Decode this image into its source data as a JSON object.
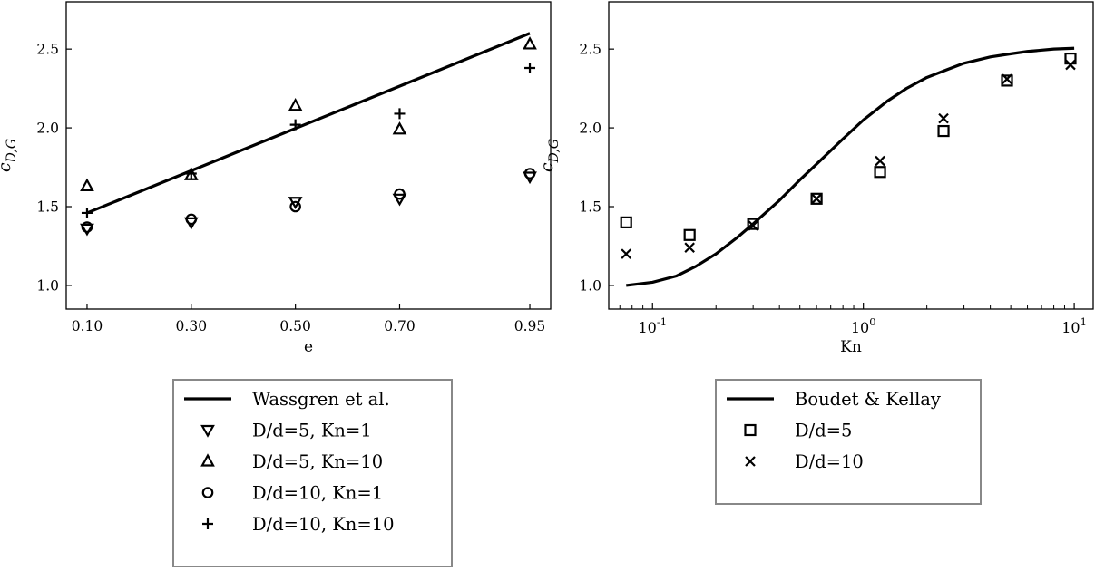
{
  "chart_data": [
    {
      "type": "scatter",
      "xscale": "categorical",
      "xlabel": "e",
      "ylabel": "c_{D,G}",
      "categories": [
        "0.10",
        "0.30",
        "0.50",
        "0.70",
        "0.95"
      ],
      "xlim": [
        0.06,
        0.99
      ],
      "ylim": [
        0.85,
        2.8
      ],
      "yticks": [
        1.0,
        1.5,
        2.0,
        2.5
      ],
      "ytick_labels": [
        "1.0",
        "1.5",
        "2.0",
        "2.5"
      ],
      "grid": false,
      "legend_position": "below",
      "series": [
        {
          "name": "Wassgren et al.",
          "marker": "line",
          "x": [
            0.1,
            0.95
          ],
          "values": [
            1.46,
            2.6
          ]
        },
        {
          "name": "D/d=5, Kn=1",
          "marker": "triangle-down",
          "x": [
            0.1,
            0.3,
            0.5,
            0.7,
            0.95
          ],
          "values": [
            1.36,
            1.4,
            1.53,
            1.55,
            1.69
          ]
        },
        {
          "name": "D/d=5, Kn=10",
          "marker": "triangle-up",
          "x": [
            0.1,
            0.3,
            0.5,
            0.7,
            0.95
          ],
          "values": [
            1.63,
            1.7,
            2.14,
            1.99,
            2.53
          ]
        },
        {
          "name": "D/d=10, Kn=1",
          "marker": "circle",
          "x": [
            0.1,
            0.3,
            0.5,
            0.7,
            0.95
          ],
          "values": [
            1.37,
            1.42,
            1.5,
            1.58,
            1.71
          ]
        },
        {
          "name": "D/d=10, Kn=10",
          "marker": "plus",
          "x": [
            0.1,
            0.3,
            0.5,
            0.7,
            0.95
          ],
          "values": [
            1.46,
            1.71,
            2.02,
            2.09,
            2.38
          ]
        }
      ]
    },
    {
      "type": "scatter",
      "xscale": "log",
      "xlabel": "Kn",
      "ylabel": "c_{D,G}",
      "xlim": [
        0.062,
        12.3
      ],
      "ylim": [
        0.85,
        2.8
      ],
      "xtick_labels": [
        "10^{-1}",
        "10^{0}",
        "10^{1}"
      ],
      "yticks": [
        1.0,
        1.5,
        2.0,
        2.5
      ],
      "ytick_labels": [
        "1.0",
        "1.5",
        "2.0",
        "2.5"
      ],
      "grid": false,
      "legend_position": "below",
      "series": [
        {
          "name": "Boudet & Kellay",
          "marker": "line",
          "x": [
            0.075,
            0.1,
            0.13,
            0.16,
            0.2,
            0.25,
            0.3,
            0.4,
            0.5,
            0.6,
            0.8,
            1.0,
            1.3,
            1.6,
            2.0,
            2.5,
            3.0,
            4.0,
            5.0,
            6.0,
            8.0,
            10.0
          ],
          "values": [
            1.0,
            1.02,
            1.06,
            1.12,
            1.2,
            1.3,
            1.39,
            1.54,
            1.67,
            1.77,
            1.93,
            2.05,
            2.17,
            2.25,
            2.32,
            2.37,
            2.41,
            2.45,
            2.47,
            2.485,
            2.5,
            2.505
          ]
        },
        {
          "name": "D/d=5",
          "marker": "square",
          "x": [
            0.075,
            0.15,
            0.3,
            0.6,
            1.2,
            2.4,
            4.8,
            9.6
          ],
          "values": [
            1.4,
            1.32,
            1.39,
            1.55,
            1.72,
            1.98,
            2.3,
            2.44
          ]
        },
        {
          "name": "D/d=10",
          "marker": "x",
          "x": [
            0.075,
            0.15,
            0.3,
            0.6,
            1.2,
            2.4,
            4.8,
            9.6
          ],
          "values": [
            1.2,
            1.24,
            1.38,
            1.55,
            1.79,
            2.06,
            2.31,
            2.4
          ]
        }
      ]
    }
  ]
}
